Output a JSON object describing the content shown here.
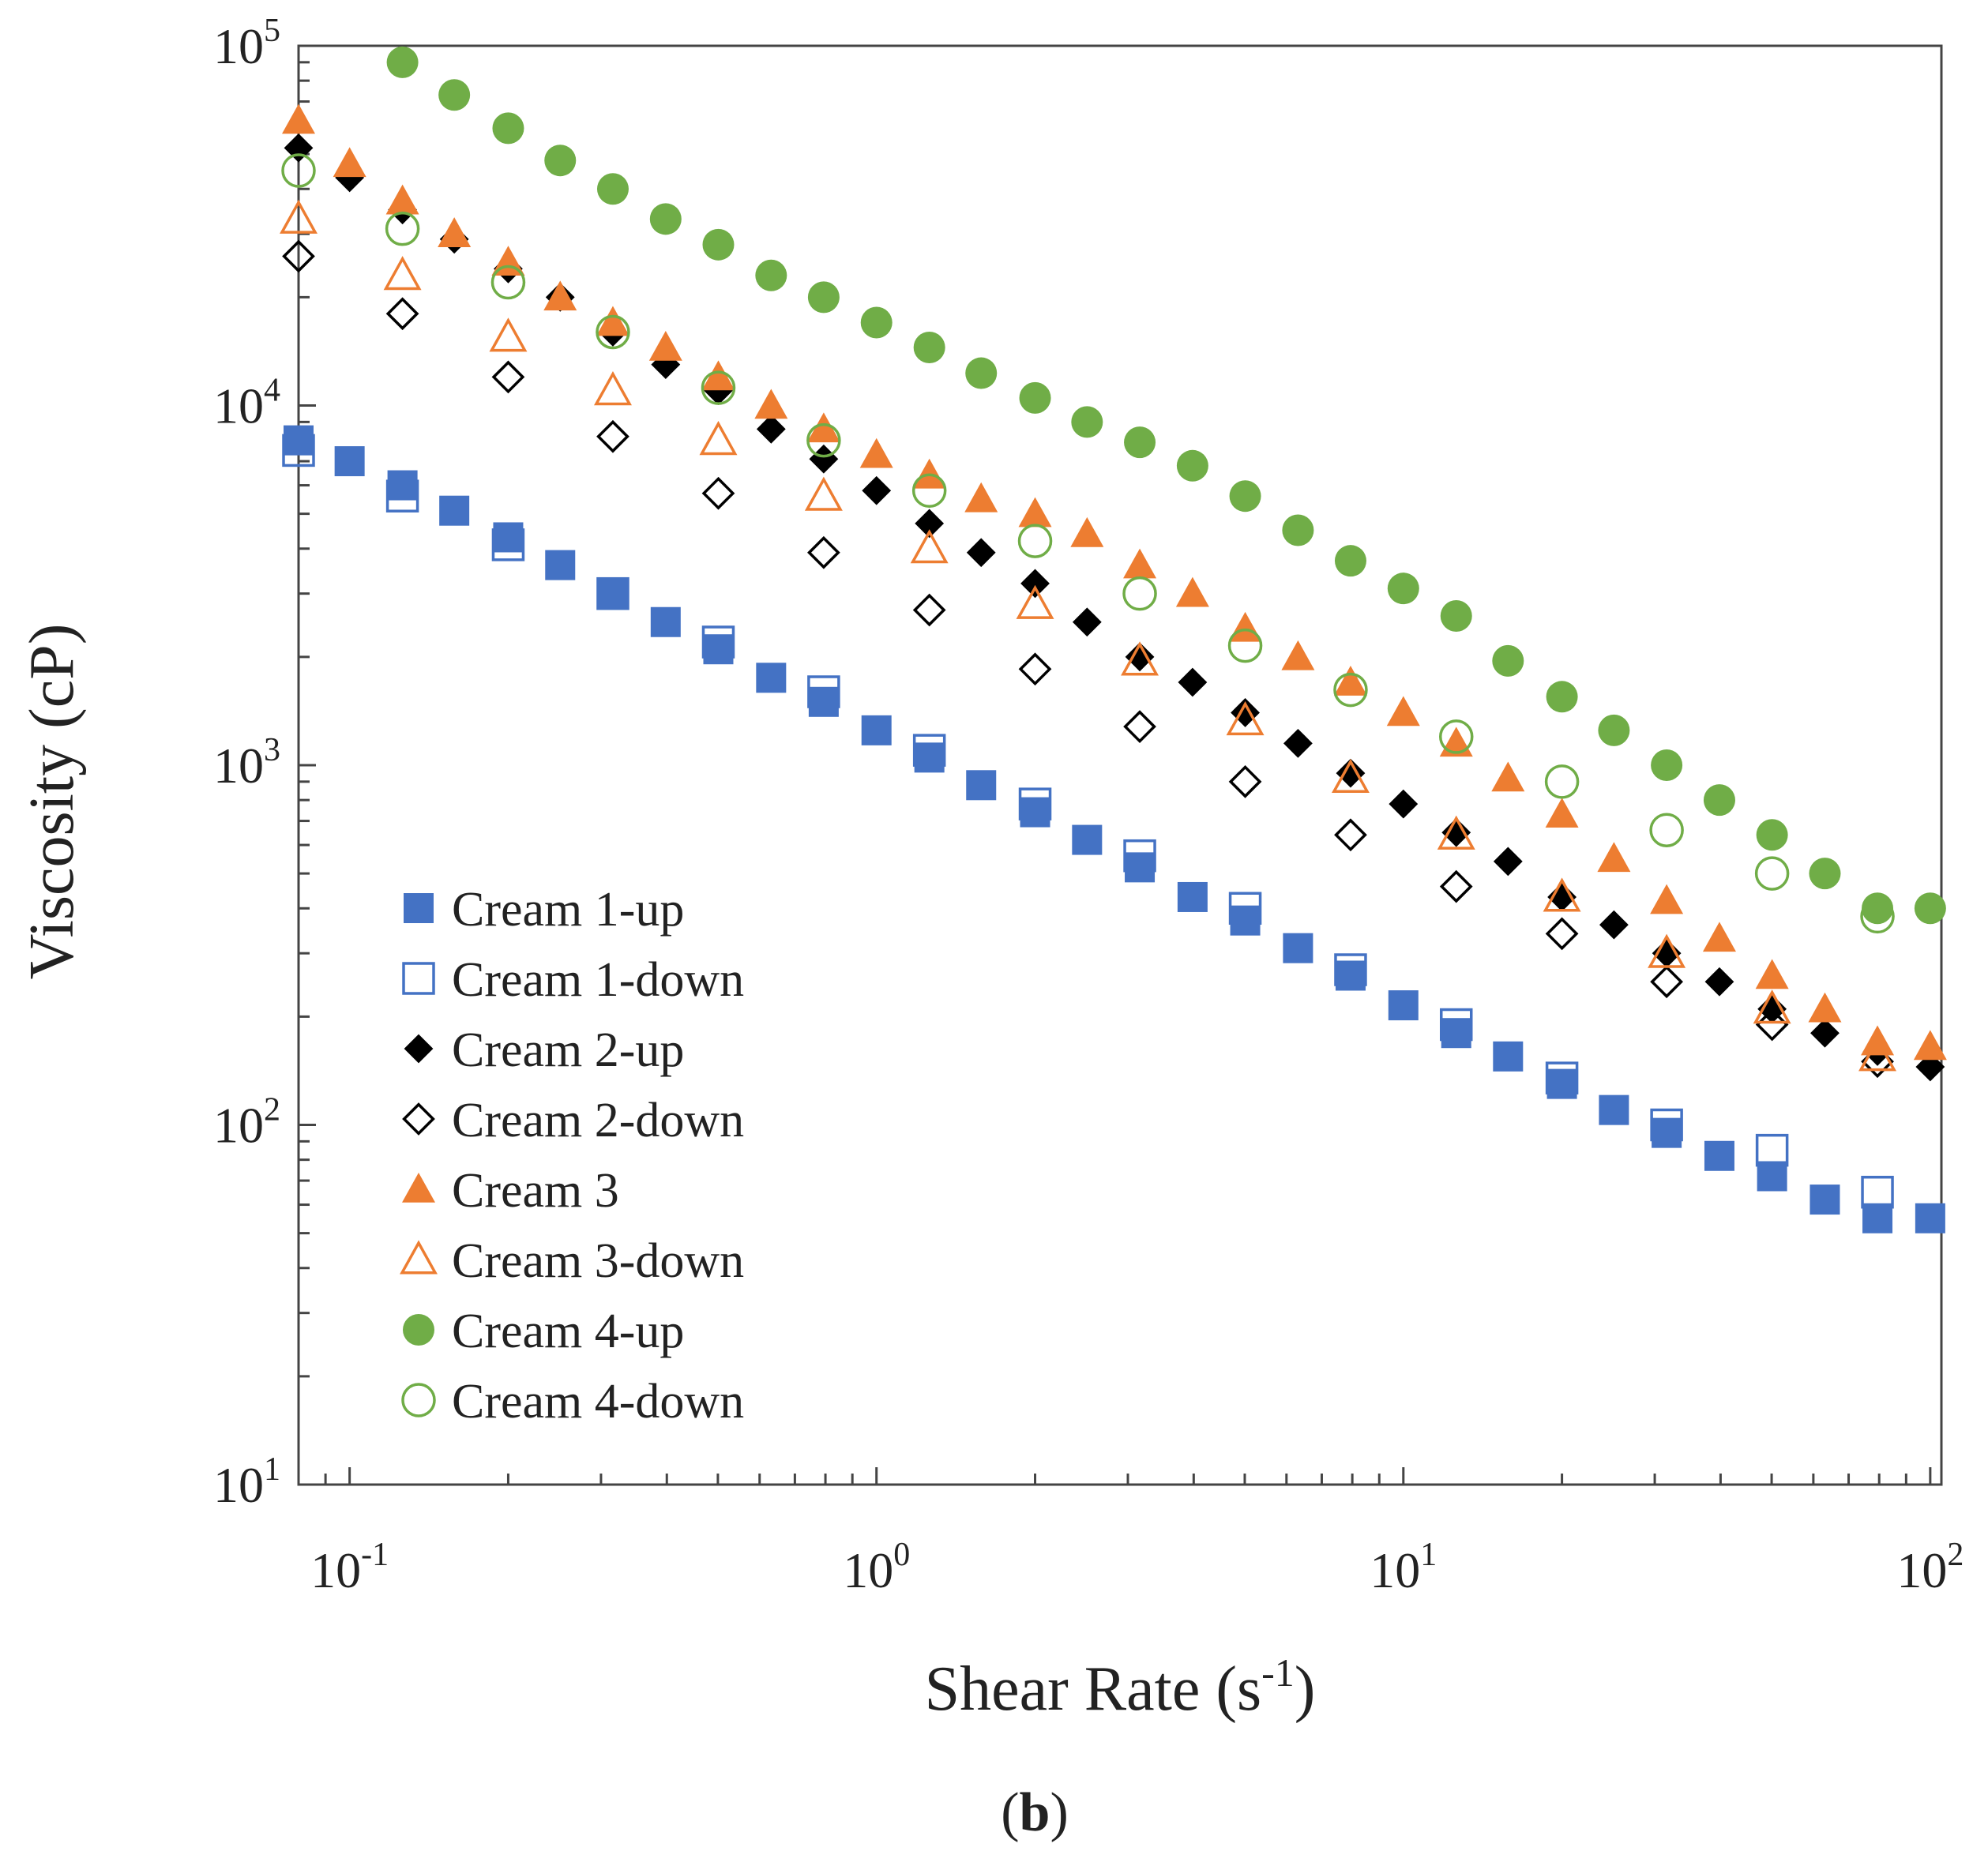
{
  "chart_data": {
    "type": "scatter",
    "xlabel": "Shear Rate (s-1)",
    "xlabel_main": "Shear Rate (s",
    "xlabel_sup": "-1",
    "xlabel_close": ")",
    "ylabel": "Viscosity (cP)",
    "xscale": "log",
    "yscale": "log",
    "xlim": [
      0.08,
      105
    ],
    "ylim": [
      10,
      100000
    ],
    "x_ticks": [
      {
        "base": "10",
        "exp": "-1",
        "value": 0.1
      },
      {
        "base": "10",
        "exp": "0",
        "value": 1
      },
      {
        "base": "10",
        "exp": "1",
        "value": 10
      },
      {
        "base": "10",
        "exp": "2",
        "value": 100
      }
    ],
    "y_ticks": [
      {
        "base": "10",
        "exp": "1",
        "value": 10
      },
      {
        "base": "10",
        "exp": "2",
        "value": 100
      },
      {
        "base": "10",
        "exp": "3",
        "value": 1000
      },
      {
        "base": "10",
        "exp": "4",
        "value": 10000
      },
      {
        "base": "10",
        "exp": "5",
        "value": 100000
      }
    ],
    "grid": false,
    "legend_position": "bottom-left",
    "panel_label": "(b)",
    "panel_label_letter": "b",
    "series": [
      {
        "name": "Cream 1-up",
        "marker": "square",
        "filled": true,
        "color": "#4472c4",
        "x": [
          0.08,
          0.1,
          0.126,
          0.158,
          0.2,
          0.251,
          0.316,
          0.398,
          0.501,
          0.631,
          0.794,
          1.0,
          1.26,
          1.58,
          2.0,
          2.51,
          3.16,
          3.98,
          5.01,
          6.31,
          7.94,
          10.0,
          12.6,
          15.8,
          20.0,
          25.1,
          31.6,
          39.8,
          50.1,
          63.1,
          79.4,
          100.0
        ],
        "y": [
          8000,
          7000,
          6000,
          5100,
          4300,
          3600,
          3000,
          2500,
          2100,
          1750,
          1500,
          1250,
          1050,
          880,
          740,
          620,
          520,
          430,
          370,
          310,
          260,
          215,
          180,
          155,
          130,
          110,
          95,
          82,
          72,
          62,
          55,
          55
        ]
      },
      {
        "name": "Cream 1-down",
        "marker": "square",
        "filled": false,
        "color": "#4472c4",
        "x": [
          0.08,
          0.126,
          0.2,
          0.316,
          0.501,
          0.794,
          1.26,
          2.0,
          3.16,
          5.01,
          7.94,
          12.6,
          20.0,
          31.6,
          50.1,
          79.4
        ],
        "y": [
          7500,
          5600,
          4100,
          3000,
          2200,
          1600,
          1100,
          780,
          560,
          400,
          270,
          190,
          135,
          100,
          85,
          65
        ]
      },
      {
        "name": "Cream 2-up",
        "marker": "diamond",
        "filled": true,
        "color": "#000000",
        "x": [
          0.08,
          0.1,
          0.126,
          0.158,
          0.2,
          0.251,
          0.316,
          0.398,
          0.501,
          0.631,
          0.794,
          1.0,
          1.26,
          1.58,
          2.0,
          2.51,
          3.16,
          3.98,
          5.01,
          6.31,
          7.94,
          10.0,
          12.6,
          15.8,
          20.0,
          25.1,
          31.6,
          39.8,
          50.1,
          63.1,
          79.4,
          100.0
        ],
        "y": [
          52000,
          43000,
          35000,
          29000,
          24000,
          20000,
          16000,
          13000,
          11000,
          8600,
          7100,
          5800,
          4700,
          3900,
          3200,
          2500,
          2000,
          1700,
          1400,
          1150,
          950,
          780,
          650,
          540,
          430,
          360,
          300,
          250,
          210,
          180,
          160,
          145
        ]
      },
      {
        "name": "Cream 2-down",
        "marker": "diamond",
        "filled": false,
        "color": "#000000",
        "x": [
          0.08,
          0.126,
          0.2,
          0.316,
          0.501,
          0.794,
          1.26,
          2.0,
          3.16,
          5.01,
          7.94,
          12.6,
          20.0,
          31.6,
          50.1,
          79.4
        ],
        "y": [
          26000,
          18000,
          12000,
          8200,
          5700,
          3900,
          2700,
          1850,
          1280,
          900,
          640,
          460,
          340,
          250,
          190,
          150
        ]
      },
      {
        "name": "Cream 3",
        "marker": "triangle",
        "filled": true,
        "color": "#ed7d31",
        "x": [
          0.08,
          0.1,
          0.126,
          0.158,
          0.2,
          0.251,
          0.316,
          0.398,
          0.501,
          0.631,
          0.794,
          1.0,
          1.26,
          1.58,
          2.0,
          2.51,
          3.16,
          3.98,
          5.01,
          6.31,
          7.94,
          10.0,
          12.6,
          15.8,
          20.0,
          25.1,
          31.6,
          39.8,
          50.1,
          63.1,
          79.4,
          100.0
        ],
        "y": [
          62000,
          47000,
          37000,
          30000,
          25000,
          20000,
          17000,
          14500,
          12000,
          10000,
          8600,
          7300,
          6400,
          5500,
          5000,
          4400,
          3600,
          3000,
          2400,
          2000,
          1700,
          1400,
          1150,
          920,
          730,
          550,
          420,
          330,
          260,
          210,
          170,
          165
        ]
      },
      {
        "name": "Cream 3-down",
        "marker": "triangle",
        "filled": false,
        "color": "#ed7d31",
        "x": [
          0.08,
          0.126,
          0.2,
          0.316,
          0.501,
          0.794,
          1.26,
          2.0,
          3.16,
          5.01,
          7.94,
          12.6,
          20.0,
          31.6,
          50.1,
          79.4
        ],
        "y": [
          33000,
          23000,
          15500,
          11000,
          8000,
          5600,
          4000,
          2800,
          1950,
          1330,
          920,
          640,
          430,
          300,
          210,
          155
        ]
      },
      {
        "name": "Cream 4-up",
        "marker": "circle",
        "filled": true,
        "color": "#70ad47",
        "x": [
          0.126,
          0.158,
          0.2,
          0.251,
          0.316,
          0.398,
          0.501,
          0.631,
          0.794,
          1.0,
          1.26,
          1.58,
          2.0,
          2.51,
          3.16,
          3.98,
          5.01,
          6.31,
          7.94,
          10.0,
          12.6,
          15.8,
          20.0,
          25.1,
          31.6,
          39.8,
          50.1,
          63.1,
          79.4,
          100.0
        ],
        "y": [
          90000,
          73000,
          59000,
          48000,
          40000,
          33000,
          28000,
          23000,
          20000,
          17000,
          14500,
          12300,
          10500,
          9000,
          7900,
          6800,
          5600,
          4500,
          3700,
          3100,
          2600,
          1950,
          1550,
          1250,
          1000,
          800,
          640,
          500,
          400,
          400
        ]
      },
      {
        "name": "Cream 4-down",
        "marker": "circle",
        "filled": false,
        "color": "#70ad47",
        "x": [
          0.08,
          0.126,
          0.2,
          0.316,
          0.501,
          0.794,
          1.26,
          2.0,
          3.16,
          5.01,
          7.94,
          12.6,
          20.0,
          31.6,
          50.1,
          79.4
        ],
        "y": [
          45000,
          31000,
          22000,
          16000,
          11200,
          8000,
          5800,
          4200,
          3000,
          2150,
          1620,
          1200,
          900,
          660,
          500,
          380
        ]
      }
    ]
  }
}
